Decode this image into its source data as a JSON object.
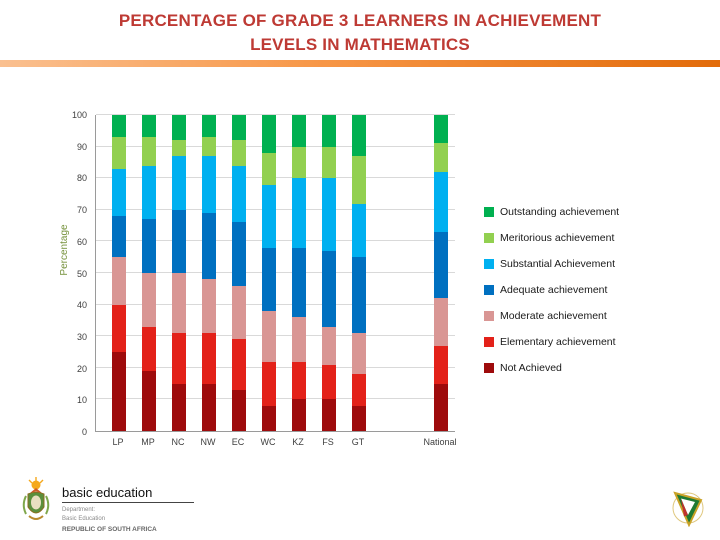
{
  "slide": {
    "title_line1": "PERCENTAGE OF GRADE 3 LEARNERS IN ACHIEVEMENT",
    "title_line2": "LEVELS IN MATHEMATICS"
  },
  "footer": {
    "brand": "basic education",
    "dept_line1": "Department:",
    "dept_line2": "Basic Education",
    "country": "REPUBLIC OF SOUTH AFRICA"
  },
  "colors": {
    "title": "#BE3A34",
    "divider_start": "#FAC090",
    "divider_end": "#E26B0A",
    "axis_label_green": "#76923C"
  },
  "chart_data": {
    "type": "bar",
    "stacked": true,
    "title": "",
    "xlabel": "",
    "ylabel": "Percentage",
    "ylim": [
      0,
      100
    ],
    "ytick_step": 10,
    "grid": true,
    "legend_position": "right",
    "categories": [
      "LP",
      "MP",
      "NC",
      "NW",
      "EC",
      "WC",
      "KZ",
      "FS",
      "GT",
      "National"
    ],
    "series": [
      {
        "name": "Not Achieved",
        "color": "#9E0B0C",
        "values": [
          25,
          19,
          15,
          15,
          13,
          8,
          10,
          10,
          8,
          15
        ]
      },
      {
        "name": "Elementary achievement",
        "color": "#E32119",
        "values": [
          15,
          14,
          16,
          16,
          16,
          14,
          12,
          11,
          10,
          12
        ]
      },
      {
        "name": "Moderate achievement",
        "color": "#D99694",
        "values": [
          15,
          17,
          19,
          17,
          17,
          16,
          14,
          12,
          13,
          15
        ]
      },
      {
        "name": "Adequate achievement",
        "color": "#0070C0",
        "values": [
          13,
          17,
          20,
          21,
          20,
          20,
          22,
          24,
          24,
          21
        ]
      },
      {
        "name": "Substantial Achievement",
        "color": "#00B0F0",
        "values": [
          15,
          17,
          17,
          18,
          18,
          20,
          22,
          23,
          17,
          19
        ]
      },
      {
        "name": "Meritorious achievement",
        "color": "#92D050",
        "values": [
          10,
          9,
          5,
          6,
          8,
          10,
          10,
          10,
          15,
          9
        ]
      },
      {
        "name": "Outstanding achievement",
        "color": "#00B050",
        "values": [
          7,
          7,
          8,
          7,
          8,
          12,
          10,
          10,
          13,
          9
        ]
      }
    ],
    "legend": [
      "Outstanding achievement",
      "Meritorious achievement",
      "Substantial Achievement",
      "Adequate achievement",
      "Moderate achievement",
      "Elementary achievement",
      "Not Achieved"
    ]
  }
}
